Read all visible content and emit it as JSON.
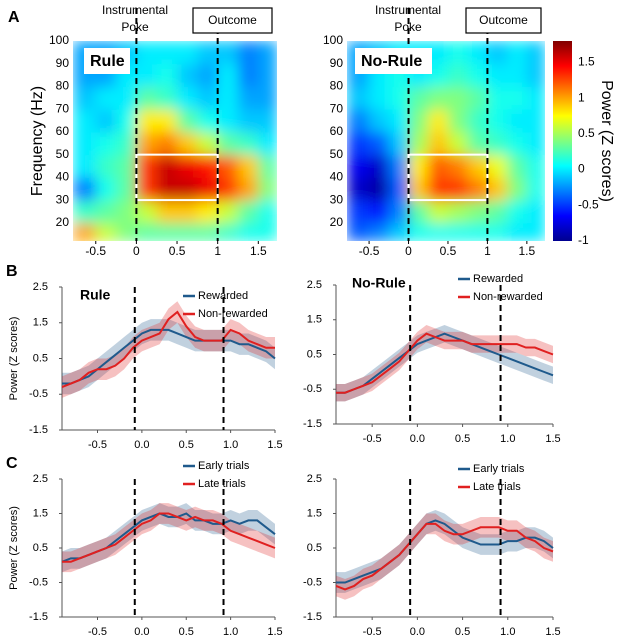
{
  "panel_labels": [
    "A",
    "B",
    "C"
  ],
  "chart_data": [
    {
      "type": "heatmap",
      "title": "Rule",
      "ylabel": "Frequency (Hz)",
      "annotations": {
        "poke": [
          "Instrumental",
          "Poke"
        ],
        "outcome": "Outcome"
      },
      "xlim": [
        -0.78,
        1.73
      ],
      "ylim": [
        12,
        100
      ],
      "xticks": [
        -0.5,
        0,
        0.5,
        1,
        1.5
      ],
      "yticks": [
        20,
        30,
        40,
        50,
        60,
        70,
        80,
        90,
        100
      ],
      "events": [
        0,
        1
      ],
      "box": {
        "x": [
          0,
          1
        ],
        "y": [
          30,
          50
        ]
      },
      "clim": [
        -1,
        1.8
      ],
      "x_edges": [
        -0.78,
        -0.5,
        -0.25,
        0,
        0.25,
        0.5,
        0.75,
        1,
        1.25,
        1.5,
        1.73
      ],
      "y_edges": [
        12,
        20,
        30,
        40,
        50,
        60,
        70,
        80,
        90,
        100
      ],
      "z": [
        [
          1.0,
          0.6,
          0.4,
          0.3,
          0.3,
          0.3,
          0.3,
          0.2,
          0.1,
          0.1
        ],
        [
          0.2,
          0.3,
          0.4,
          0.6,
          0.9,
          0.9,
          0.8,
          0.6,
          0.3,
          0.1
        ],
        [
          -0.3,
          0.1,
          0.3,
          1.3,
          1.6,
          1.6,
          1.5,
          1.3,
          1.0,
          0.4
        ],
        [
          0.0,
          0.2,
          0.3,
          1.3,
          1.6,
          1.5,
          1.4,
          1.2,
          0.9,
          0.3
        ],
        [
          0.0,
          0.1,
          0.2,
          1.0,
          1.1,
          0.9,
          0.6,
          0.3,
          0.2,
          0.0
        ],
        [
          0.0,
          -0.1,
          0.1,
          0.8,
          0.8,
          0.3,
          0.1,
          0.0,
          -0.1,
          -0.1
        ],
        [
          -0.1,
          0.0,
          0.0,
          0.3,
          0.2,
          0.0,
          -0.1,
          0.0,
          -0.2,
          -0.2
        ],
        [
          -0.2,
          -0.2,
          0.0,
          0.0,
          0.1,
          -0.1,
          -0.2,
          0.0,
          -0.3,
          -0.2
        ],
        [
          -0.2,
          -0.2,
          -0.1,
          0.0,
          0.0,
          0.0,
          -0.1,
          -0.1,
          -0.3,
          -0.2
        ]
      ]
    },
    {
      "type": "heatmap",
      "title": "No-Rule",
      "annotations": {
        "poke": [
          "Instrumental",
          "Poke"
        ],
        "outcome": "Outcome"
      },
      "xlim": [
        -0.78,
        1.73
      ],
      "ylim": [
        12,
        100
      ],
      "xticks": [
        -0.5,
        0,
        0.5,
        1,
        1.5
      ],
      "yticks": [
        20,
        30,
        40,
        50,
        60,
        70,
        80,
        90,
        100
      ],
      "events": [
        0,
        1
      ],
      "box": {
        "x": [
          0,
          1
        ],
        "y": [
          30,
          50
        ]
      },
      "clim": [
        -1,
        1.8
      ],
      "colorbar": {
        "label": "Power (Z scores)",
        "ticks": [
          -1,
          -0.5,
          0,
          0.5,
          1,
          1.5
        ]
      },
      "x_edges": [
        -0.78,
        -0.5,
        -0.25,
        0,
        0.25,
        0.5,
        0.75,
        1,
        1.25,
        1.5,
        1.73
      ],
      "y_edges": [
        12,
        20,
        30,
        40,
        50,
        60,
        70,
        80,
        90,
        100
      ],
      "z": [
        [
          -0.4,
          -0.3,
          -0.1,
          0.1,
          0.1,
          0.1,
          0.1,
          0.1,
          0.0,
          0.0
        ],
        [
          -0.5,
          -0.6,
          -0.3,
          0.3,
          0.6,
          0.5,
          0.4,
          0.3,
          0.1,
          0.0
        ],
        [
          -0.8,
          -0.9,
          -0.4,
          0.9,
          1.3,
          1.3,
          1.1,
          0.9,
          0.4,
          0.1
        ],
        [
          -0.7,
          -0.8,
          -0.3,
          0.8,
          1.2,
          1.1,
          0.9,
          0.7,
          0.3,
          0.1
        ],
        [
          -0.5,
          -0.4,
          -0.1,
          0.5,
          0.9,
          0.6,
          0.3,
          0.2,
          0.1,
          0.0
        ],
        [
          -0.3,
          -0.1,
          0.0,
          0.4,
          0.8,
          0.4,
          0.2,
          0.1,
          0.0,
          0.0
        ],
        [
          -0.1,
          0.0,
          0.1,
          0.3,
          0.4,
          0.4,
          0.3,
          0.1,
          0.1,
          0.0
        ],
        [
          -0.2,
          0.0,
          0.1,
          0.0,
          0.1,
          0.2,
          0.1,
          0.0,
          0.0,
          -0.1
        ],
        [
          -0.2,
          -0.1,
          0.0,
          0.0,
          0.0,
          0.1,
          0.0,
          -0.1,
          0.0,
          -0.1
        ]
      ]
    },
    {
      "type": "line",
      "title": "Rule",
      "ylabel": "Power (Z scores)",
      "xlim": [
        -0.9,
        1.5
      ],
      "ylim": [
        -1.5,
        2.5
      ],
      "yticks": [
        2.5,
        1.5,
        0.5,
        -0.5,
        -1.5
      ],
      "xticks": [
        -0.5,
        {
          "value": 0,
          "label": "0.0"
        },
        0.5,
        {
          "value": 1,
          "label": "1.0"
        },
        1.5
      ],
      "events": [
        -0.08,
        0.92
      ],
      "x": [
        -0.9,
        -0.8,
        -0.7,
        -0.6,
        -0.5,
        -0.4,
        -0.3,
        -0.2,
        -0.1,
        0,
        0.1,
        0.2,
        0.3,
        0.4,
        0.5,
        0.6,
        0.7,
        0.8,
        0.9,
        1,
        1.1,
        1.2,
        1.3,
        1.4,
        1.5
      ],
      "series": [
        {
          "name": "Rewarded",
          "color": "#1f5a8c",
          "error": 0.3,
          "values": [
            -0.2,
            -0.2,
            -0.1,
            0.0,
            0.2,
            0.4,
            0.6,
            0.8,
            1.0,
            1.2,
            1.3,
            1.3,
            1.3,
            1.2,
            1.1,
            1.0,
            1.0,
            1.0,
            1.0,
            1.0,
            0.9,
            0.9,
            0.8,
            0.7,
            0.5
          ]
        },
        {
          "name": "Non-rewarded",
          "color": "#e02020",
          "error": 0.3,
          "values": [
            -0.3,
            -0.2,
            -0.1,
            0.1,
            0.2,
            0.2,
            0.3,
            0.5,
            0.8,
            1.0,
            1.1,
            1.2,
            1.6,
            1.8,
            1.4,
            1.1,
            1.0,
            1.0,
            1.0,
            1.3,
            1.2,
            1.0,
            0.9,
            0.8,
            0.8
          ]
        }
      ]
    },
    {
      "type": "line",
      "title": "No-Rule",
      "xlim": [
        -0.9,
        1.5
      ],
      "ylim": [
        -1.5,
        2.5
      ],
      "yticks": [
        2.5,
        1.5,
        0.5,
        -0.5,
        -1.5
      ],
      "xticks": [
        -0.5,
        {
          "value": 0,
          "label": "0.0"
        },
        0.5,
        {
          "value": 1,
          "label": "1.0"
        },
        1.5
      ],
      "events": [
        -0.08,
        0.92
      ],
      "x": [
        -0.9,
        -0.8,
        -0.7,
        -0.6,
        -0.5,
        -0.4,
        -0.3,
        -0.2,
        -0.1,
        0,
        0.1,
        0.2,
        0.3,
        0.4,
        0.5,
        0.6,
        0.7,
        0.8,
        0.9,
        1,
        1.1,
        1.2,
        1.3,
        1.4,
        1.5
      ],
      "series": [
        {
          "name": "Rewarded",
          "color": "#1f5a8c",
          "error": 0.25,
          "values": [
            -0.6,
            -0.6,
            -0.5,
            -0.4,
            -0.2,
            0.0,
            0.2,
            0.4,
            0.6,
            0.8,
            0.9,
            1.0,
            1.1,
            1.0,
            0.9,
            0.8,
            0.7,
            0.6,
            0.5,
            0.4,
            0.3,
            0.2,
            0.1,
            0.0,
            -0.1
          ]
        },
        {
          "name": "Non-rewarded",
          "color": "#e02020",
          "error": 0.25,
          "values": [
            -0.6,
            -0.6,
            -0.5,
            -0.4,
            -0.3,
            -0.1,
            0.1,
            0.3,
            0.6,
            0.9,
            1.1,
            1.0,
            0.9,
            0.9,
            0.9,
            0.8,
            0.8,
            0.8,
            0.8,
            0.8,
            0.8,
            0.7,
            0.7,
            0.6,
            0.5
          ]
        }
      ]
    },
    {
      "type": "line",
      "ylabel": "Power (Z scores)",
      "xlim": [
        -0.9,
        1.5
      ],
      "ylim": [
        -1.5,
        2.5
      ],
      "yticks": [
        2.5,
        1.5,
        0.5,
        -0.5,
        -1.5
      ],
      "xticks": [
        -0.5,
        {
          "value": 0,
          "label": "0.0"
        },
        0.5,
        {
          "value": 1,
          "label": "1.0"
        },
        1.5
      ],
      "events": [
        -0.08,
        0.92
      ],
      "x": [
        -0.9,
        -0.8,
        -0.7,
        -0.6,
        -0.5,
        -0.4,
        -0.3,
        -0.2,
        -0.1,
        0,
        0.1,
        0.2,
        0.3,
        0.4,
        0.5,
        0.6,
        0.7,
        0.8,
        0.9,
        1,
        1.1,
        1.2,
        1.3,
        1.4,
        1.5
      ],
      "series": [
        {
          "name": "Early trials",
          "color": "#1f5a8c",
          "error": 0.3,
          "values": [
            0.1,
            0.2,
            0.2,
            0.3,
            0.4,
            0.5,
            0.7,
            0.9,
            1.1,
            1.3,
            1.4,
            1.5,
            1.4,
            1.4,
            1.5,
            1.3,
            1.3,
            1.2,
            1.2,
            1.3,
            1.2,
            1.3,
            1.3,
            1.1,
            0.9
          ]
        },
        {
          "name": "Late trials",
          "color": "#e02020",
          "error": 0.3,
          "values": [
            0.1,
            0.1,
            0.2,
            0.3,
            0.4,
            0.5,
            0.6,
            0.8,
            1.0,
            1.2,
            1.3,
            1.5,
            1.5,
            1.4,
            1.3,
            1.4,
            1.3,
            1.3,
            1.2,
            1.0,
            0.9,
            0.8,
            0.7,
            0.6,
            0.5
          ]
        }
      ]
    },
    {
      "type": "line",
      "xlim": [
        -0.9,
        1.5
      ],
      "ylim": [
        -1.5,
        2.5
      ],
      "yticks": [
        2.5,
        1.5,
        0.5,
        -0.5,
        -1.5
      ],
      "xticks": [
        -0.5,
        {
          "value": 0,
          "label": "0.0"
        },
        0.5,
        {
          "value": 1,
          "label": "1.0"
        },
        1.5
      ],
      "events": [
        -0.08,
        0.92
      ],
      "x": [
        -0.9,
        -0.8,
        -0.7,
        -0.6,
        -0.5,
        -0.4,
        -0.3,
        -0.2,
        -0.1,
        0,
        0.1,
        0.2,
        0.3,
        0.4,
        0.5,
        0.6,
        0.7,
        0.8,
        0.9,
        1,
        1.1,
        1.2,
        1.3,
        1.4,
        1.5
      ],
      "series": [
        {
          "name": "Early trials",
          "color": "#1f5a8c",
          "error": 0.3,
          "values": [
            -0.5,
            -0.5,
            -0.4,
            -0.3,
            -0.2,
            -0.1,
            0.1,
            0.3,
            0.6,
            0.9,
            1.2,
            1.3,
            1.2,
            1.0,
            0.8,
            0.7,
            0.6,
            0.6,
            0.6,
            0.7,
            0.7,
            0.8,
            0.8,
            0.7,
            0.5
          ]
        },
        {
          "name": "Late trials",
          "color": "#e02020",
          "error": 0.3,
          "values": [
            -0.6,
            -0.7,
            -0.6,
            -0.4,
            -0.3,
            -0.1,
            0.1,
            0.3,
            0.6,
            0.9,
            1.2,
            1.2,
            1.0,
            0.9,
            0.9,
            1.0,
            1.1,
            1.1,
            1.1,
            1.0,
            1.0,
            0.8,
            0.7,
            0.5,
            0.4
          ]
        }
      ]
    }
  ]
}
